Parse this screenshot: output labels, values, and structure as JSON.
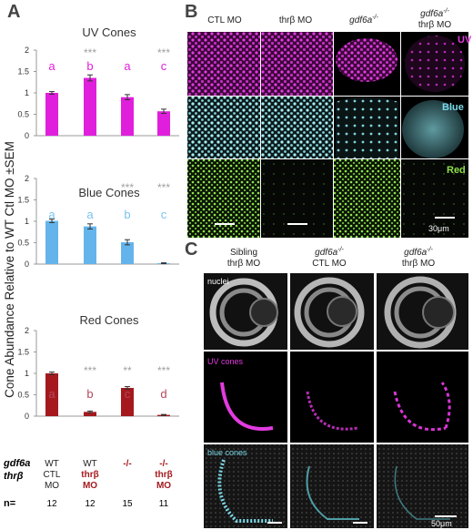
{
  "panels": {
    "a": "A",
    "b": "B",
    "c": "C"
  },
  "colors": {
    "uv": "#e01fdc",
    "blue": "#64b4eb",
    "red": "#a5191e",
    "sig": "#a0a0a0",
    "uv_letter": "#e01fdc",
    "blue_letter": "#7ac3ee",
    "red_letter": "#b5485a",
    "label_magenta": "#e23be0",
    "label_cyan": "#7ad7e6",
    "label_green": "#8fe24a"
  },
  "chart_data": [
    {
      "type": "bar",
      "title": "UV Cones",
      "categories": [
        "WT CTL MO",
        "WT thrβ MO",
        "-/-",
        "-/- thrβ MO"
      ],
      "values": [
        1.0,
        1.35,
        0.9,
        0.57
      ],
      "errors": [
        0.03,
        0.07,
        0.06,
        0.05
      ],
      "ylim": [
        0,
        2
      ],
      "yticks": [
        "0",
        "0.5",
        "1",
        "1.5",
        "2"
      ],
      "significance": [
        "",
        "***",
        "",
        "***"
      ],
      "letters": [
        "a",
        "b",
        "a",
        "c"
      ],
      "color": "#e01fdc"
    },
    {
      "type": "bar",
      "title": "Blue Cones",
      "categories": [
        "WT CTL MO",
        "WT thrβ MO",
        "-/-",
        "-/- thrβ MO"
      ],
      "values": [
        1.01,
        0.88,
        0.51,
        0.02
      ],
      "errors": [
        0.04,
        0.06,
        0.06,
        0.01
      ],
      "ylim": [
        0,
        2
      ],
      "yticks": [
        "0",
        "0.5",
        "1",
        "1.5",
        "2"
      ],
      "significance": [
        "",
        "",
        "***",
        "***"
      ],
      "letters": [
        "a",
        "a",
        "b",
        "c"
      ],
      "color": "#64b4eb"
    },
    {
      "type": "bar",
      "title": "Red Cones",
      "categories": [
        "WT CTL MO",
        "WT thrβ MO",
        "-/-",
        "-/- thrβ MO"
      ],
      "values": [
        1.0,
        0.1,
        0.66,
        0.03
      ],
      "errors": [
        0.03,
        0.02,
        0.03,
        0.01
      ],
      "ylim": [
        0,
        2
      ],
      "yticks": [
        "0",
        "0.5",
        "1",
        "1.5",
        "2"
      ],
      "significance": [
        "",
        "***",
        "**",
        "***"
      ],
      "letters": [
        "a",
        "b",
        "c",
        "d"
      ],
      "color": "#a5191e"
    }
  ],
  "y_axis_label": "Cone Abundance Relative to WT Ctl MO ±SEM",
  "genotype_row": {
    "gdf6a_label": "gdf6a",
    "thrb_label": "thrβ",
    "columns": [
      {
        "line1": "WT",
        "line2": "CTL",
        "line3": "MO",
        "highlight": false
      },
      {
        "line1": "WT",
        "line2": "thrβ",
        "line3": "MO",
        "highlight": true
      },
      {
        "line1": "-/-",
        "line2": "",
        "line3": "",
        "highlight": true
      },
      {
        "line1": "-/-",
        "line2": "thrβ",
        "line3": "MO",
        "highlight": true
      }
    ]
  },
  "n_row": {
    "label": "n=",
    "values": [
      "12",
      "12",
      "15",
      "11"
    ]
  },
  "panel_b": {
    "columns": [
      "CTL MO",
      "thrβ MO",
      "gdf6a",
      "gdf6a"
    ],
    "column_sup": [
      "",
      "",
      "-/-",
      "-/-"
    ],
    "column_line2": [
      "",
      "",
      "",
      "thrβ MO"
    ],
    "rows": [
      "UV",
      "Blue",
      "Red"
    ],
    "scale_bar": "30μm"
  },
  "panel_c": {
    "columns": [
      {
        "line1": "Sibling",
        "line2": "thrβ MO"
      },
      {
        "line1": "gdf6a",
        "sup": "-/-",
        "line2": "CTL MO"
      },
      {
        "line1": "gdf6a",
        "sup": "-/-",
        "line2": "thrβ MO"
      }
    ],
    "rows": [
      "nuclei",
      "UV cones",
      "blue cones"
    ],
    "scale_bar": "50μm"
  }
}
